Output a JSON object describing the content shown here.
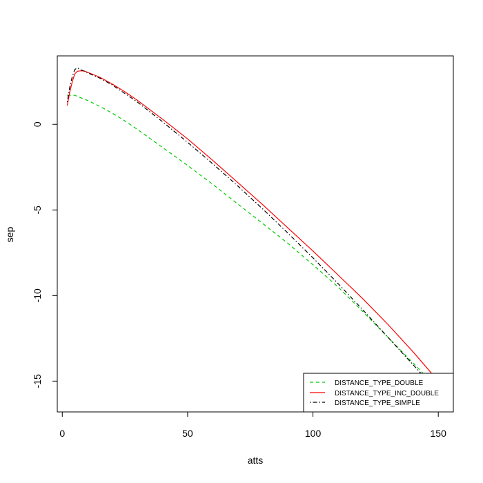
{
  "chart_data": {
    "type": "line",
    "title": "",
    "xlabel": "atts",
    "ylabel": "sep",
    "xlim": [
      -2,
      156
    ],
    "ylim": [
      -16.8,
      4.0
    ],
    "xticks": [
      0,
      50,
      100,
      150
    ],
    "yticks": [
      0,
      -5,
      -10,
      -15
    ],
    "grid": false,
    "legend_position": "bottom-right",
    "series": [
      {
        "name": "DISTANCE_TYPE_DOUBLE",
        "color": "#00cd00",
        "dash": "dashed",
        "x": [
          2,
          5,
          10,
          15,
          20,
          25,
          30,
          40,
          50,
          60,
          70,
          80,
          90,
          100,
          110,
          120,
          130,
          140,
          150
        ],
        "y": [
          1.7,
          1.7,
          1.4,
          1.05,
          0.65,
          0.2,
          -0.3,
          -1.35,
          -2.4,
          -3.5,
          -4.65,
          -5.8,
          -6.95,
          -8.2,
          -9.5,
          -10.95,
          -12.45,
          -13.95,
          -15.45
        ]
      },
      {
        "name": "DISTANCE_TYPE_INC_DOUBLE",
        "color": "#ff0000",
        "dash": "solid",
        "x": [
          2,
          3,
          4,
          5,
          6,
          7,
          8,
          9,
          10,
          15,
          20,
          25,
          30,
          40,
          50,
          60,
          70,
          80,
          90,
          100,
          110,
          120,
          130,
          140,
          150
        ],
        "y": [
          1.1,
          1.9,
          2.5,
          2.95,
          3.1,
          3.12,
          3.13,
          3.1,
          3.05,
          2.75,
          2.35,
          1.9,
          1.4,
          0.3,
          -0.85,
          -2.1,
          -3.4,
          -4.7,
          -6.05,
          -7.4,
          -8.8,
          -10.2,
          -11.7,
          -13.3,
          -15.0
        ]
      },
      {
        "name": "DISTANCE_TYPE_SIMPLE",
        "color": "#000000",
        "dash": "dotdash",
        "x": [
          2,
          3,
          4,
          5,
          6,
          7,
          8,
          9,
          10,
          15,
          20,
          25,
          30,
          40,
          50,
          60,
          70,
          80,
          90,
          100,
          110,
          120,
          130,
          140,
          150
        ],
        "y": [
          1.3,
          2.2,
          2.8,
          3.2,
          3.3,
          3.22,
          3.15,
          3.1,
          3.02,
          2.7,
          2.3,
          1.8,
          1.3,
          0.15,
          -1.05,
          -2.3,
          -3.6,
          -4.95,
          -6.35,
          -7.8,
          -9.3,
          -10.85,
          -12.45,
          -14.05,
          -15.65
        ]
      }
    ]
  }
}
